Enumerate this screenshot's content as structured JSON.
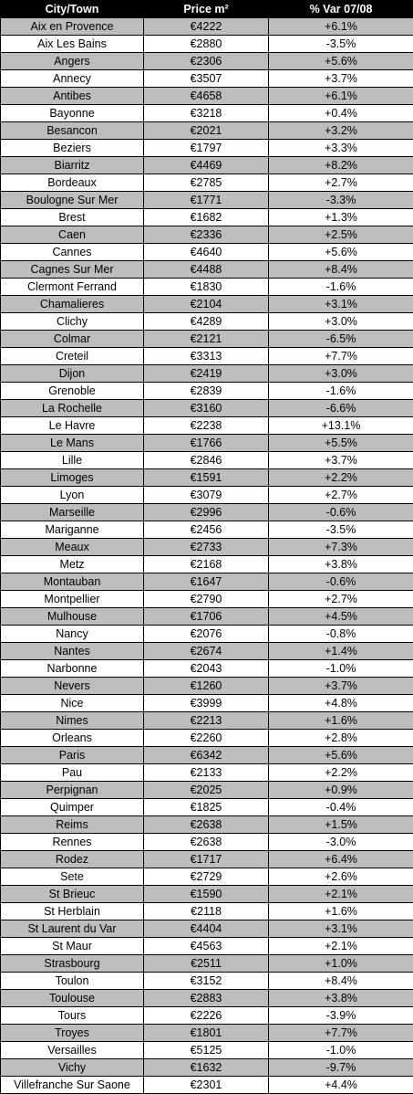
{
  "headers": [
    "City/Town",
    "Price m²",
    "% Var 07/08"
  ],
  "colors": {
    "header_bg": "#000000",
    "header_text": "#ffffff",
    "shaded_row": "#bdbdbd",
    "plain_row": "#ffffff"
  },
  "rows": [
    [
      "Aix en Provence",
      "€4222",
      "+6.1%"
    ],
    [
      "Aix Les Bains",
      "€2880",
      "-3.5%"
    ],
    [
      "Angers",
      "€2306",
      "+5.6%"
    ],
    [
      "Annecy",
      "€3507",
      "+3.7%"
    ],
    [
      "Antibes",
      "€4658",
      "+6.1%"
    ],
    [
      "Bayonne",
      "€3218",
      "+0.4%"
    ],
    [
      "Besancon",
      "€2021",
      "+3.2%"
    ],
    [
      "Beziers",
      "€1797",
      "+3.3%"
    ],
    [
      "Biarritz",
      "€4469",
      "+8.2%"
    ],
    [
      "Bordeaux",
      "€2785",
      "+2.7%"
    ],
    [
      "Boulogne Sur Mer",
      "€1771",
      "-3.3%"
    ],
    [
      "Brest",
      "€1682",
      "+1.3%"
    ],
    [
      "Caen",
      "€2336",
      "+2.5%"
    ],
    [
      "Cannes",
      "€4640",
      "+5.6%"
    ],
    [
      "Cagnes Sur Mer",
      "€4488",
      "+8.4%"
    ],
    [
      "Clermont Ferrand",
      "€1830",
      "-1.6%"
    ],
    [
      "Chamalieres",
      "€2104",
      "+3.1%"
    ],
    [
      "Clichy",
      "€4289",
      "+3.0%"
    ],
    [
      "Colmar",
      "€2121",
      "-6.5%"
    ],
    [
      "Creteil",
      "€3313",
      "+7.7%"
    ],
    [
      "Dijon",
      "€2419",
      "+3.0%"
    ],
    [
      "Grenoble",
      "€2839",
      "-1.6%"
    ],
    [
      "La Rochelle",
      "€3160",
      "-6.6%"
    ],
    [
      "Le Havre",
      "€2238",
      "+13.1%"
    ],
    [
      "Le Mans",
      "€1766",
      "+5.5%"
    ],
    [
      "Lille",
      "€2846",
      "+3.7%"
    ],
    [
      "Limoges",
      "€1591",
      "+2.2%"
    ],
    [
      "Lyon",
      "€3079",
      "+2.7%"
    ],
    [
      "Marseille",
      "€2996",
      "-0.6%"
    ],
    [
      "Mariganne",
      "€2456",
      "-3.5%"
    ],
    [
      "Meaux",
      "€2733",
      "+7.3%"
    ],
    [
      "Metz",
      "€2168",
      "+3.8%"
    ],
    [
      "Montauban",
      "€1647",
      "-0.6%"
    ],
    [
      "Montpellier",
      "€2790",
      "+2.7%"
    ],
    [
      "Mulhouse",
      "€1706",
      "+4.5%"
    ],
    [
      "Nancy",
      "€2076",
      "-0.8%"
    ],
    [
      "Nantes",
      "€2674",
      "+1.4%"
    ],
    [
      "Narbonne",
      "€2043",
      "-1.0%"
    ],
    [
      "Nevers",
      "€1260",
      "+3.7%"
    ],
    [
      "Nice",
      "€3999",
      "+4.8%"
    ],
    [
      "Nimes",
      "€2213",
      "+1.6%"
    ],
    [
      "Orleans",
      "€2260",
      "+2.8%"
    ],
    [
      "Paris",
      "€6342",
      "+5.6%"
    ],
    [
      "Pau",
      "€2133",
      "+2.2%"
    ],
    [
      "Perpignan",
      "€2025",
      "+0.9%"
    ],
    [
      "Quimper",
      "€1825",
      "-0.4%"
    ],
    [
      "Reims",
      "€2638",
      "+1.5%"
    ],
    [
      "Rennes",
      "€2638",
      "-3.0%"
    ],
    [
      "Rodez",
      "€1717",
      "+6.4%"
    ],
    [
      "Sete",
      "€2729",
      "+2.6%"
    ],
    [
      "St Brieuc",
      "€1590",
      "+2.1%"
    ],
    [
      "St Herblain",
      "€2118",
      "+1.6%"
    ],
    [
      "St Laurent du Var",
      "€4404",
      "+3.1%"
    ],
    [
      "St Maur",
      "€4563",
      "+2.1%"
    ],
    [
      "Strasbourg",
      "€2511",
      "+1.0%"
    ],
    [
      "Toulon",
      "€3152",
      "+8.4%"
    ],
    [
      "Toulouse",
      "€2883",
      "+3.8%"
    ],
    [
      "Tours",
      "€2226",
      "-3.9%"
    ],
    [
      "Troyes",
      "€1801",
      "+7.7%"
    ],
    [
      "Versailles",
      "€5125",
      "-1.0%"
    ],
    [
      "Vichy",
      "€1632",
      "-9.7%"
    ],
    [
      "Villefranche Sur Saone",
      "€2301",
      "+4.4%"
    ]
  ]
}
